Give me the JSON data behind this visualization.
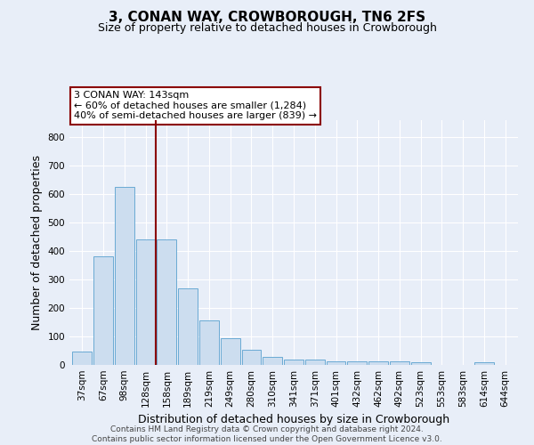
{
  "title": "3, CONAN WAY, CROWBOROUGH, TN6 2FS",
  "subtitle": "Size of property relative to detached houses in Crowborough",
  "xlabel": "Distribution of detached houses by size in Crowborough",
  "ylabel": "Number of detached properties",
  "footer_line1": "Contains HM Land Registry data © Crown copyright and database right 2024.",
  "footer_line2": "Contains public sector information licensed under the Open Government Licence v3.0.",
  "categories": [
    "37sqm",
    "67sqm",
    "98sqm",
    "128sqm",
    "158sqm",
    "189sqm",
    "219sqm",
    "249sqm",
    "280sqm",
    "310sqm",
    "341sqm",
    "371sqm",
    "401sqm",
    "432sqm",
    "462sqm",
    "492sqm",
    "523sqm",
    "553sqm",
    "583sqm",
    "614sqm",
    "644sqm"
  ],
  "values": [
    48,
    380,
    625,
    440,
    440,
    268,
    155,
    95,
    52,
    28,
    18,
    18,
    12,
    12,
    14,
    14,
    8,
    0,
    0,
    8,
    0
  ],
  "bar_color": "#ccddef",
  "bar_edge_color": "#6aaad4",
  "vline_x_idx": 3.5,
  "vline_color": "#8b0000",
  "annotation_text": "3 CONAN WAY: 143sqm\n← 60% of detached houses are smaller (1,284)\n40% of semi-detached houses are larger (839) →",
  "annotation_box_facecolor": "#ffffff",
  "annotation_box_edgecolor": "#8b0000",
  "ylim": [
    0,
    860
  ],
  "yticks": [
    0,
    100,
    200,
    300,
    400,
    500,
    600,
    700,
    800
  ],
  "bg_color": "#e8eef8",
  "axes_bg_color": "#e8eef8",
  "grid_color": "#ffffff",
  "title_fontsize": 11,
  "subtitle_fontsize": 9,
  "ylabel_fontsize": 9,
  "xlabel_fontsize": 9,
  "tick_fontsize": 7.5,
  "footer_fontsize": 6.5
}
